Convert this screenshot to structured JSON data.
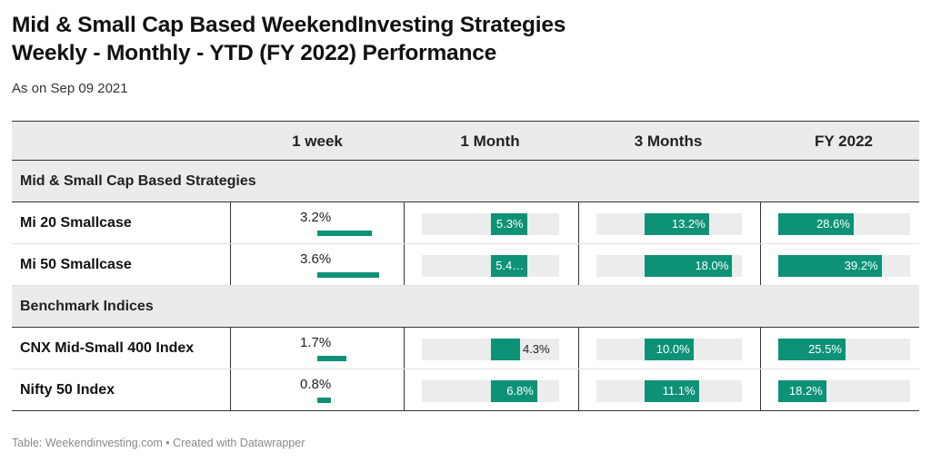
{
  "title": {
    "line1": "Mid & Small Cap Based WeekendInvesting Strategies",
    "line2": "Weekly - Monthly - YTD (FY 2022) Performance"
  },
  "subtitle": "As on Sep 09 2021",
  "colors": {
    "bar": "#0e9277",
    "track": "#ececec",
    "header_bg": "#ebebeb"
  },
  "chart_data": {
    "type": "table",
    "columns": [
      "",
      "1 week",
      "1 Month",
      "3 Months",
      "FY 2022"
    ],
    "groups": [
      {
        "label": "Mid & Small Cap Based Strategies",
        "rows": [
          {
            "name": "Mi 20 Smallcase",
            "values": [
              3.2,
              5.3,
              13.2,
              28.6
            ],
            "labels": [
              "3.2%",
              "5.3%",
              "13.2%",
              "28.6%"
            ]
          },
          {
            "name": "Mi 50 Smallcase",
            "values": [
              3.6,
              5.4,
              18.0,
              39.2
            ],
            "labels": [
              "3.6%",
              "5.4…",
              "18.0%",
              "39.2%"
            ]
          }
        ]
      },
      {
        "label": "Benchmark Indices",
        "rows": [
          {
            "name": "CNX Mid-Small 400 Index",
            "values": [
              1.7,
              4.3,
              10.0,
              25.5
            ],
            "labels": [
              "1.7%",
              "4.3%",
              "10.0%",
              "25.5%"
            ]
          },
          {
            "name": "Nifty 50 Index",
            "values": [
              0.8,
              6.8,
              11.1,
              18.2
            ],
            "labels": [
              "0.8%",
              "6.8%",
              "11.1%",
              "18.2%"
            ]
          }
        ]
      }
    ],
    "column_ranges": [
      [
        0,
        5
      ],
      [
        -10,
        10
      ],
      [
        -10,
        20
      ],
      [
        0,
        50
      ]
    ]
  },
  "footer": "Table: Weekendinvesting.com • Created with Datawrapper"
}
